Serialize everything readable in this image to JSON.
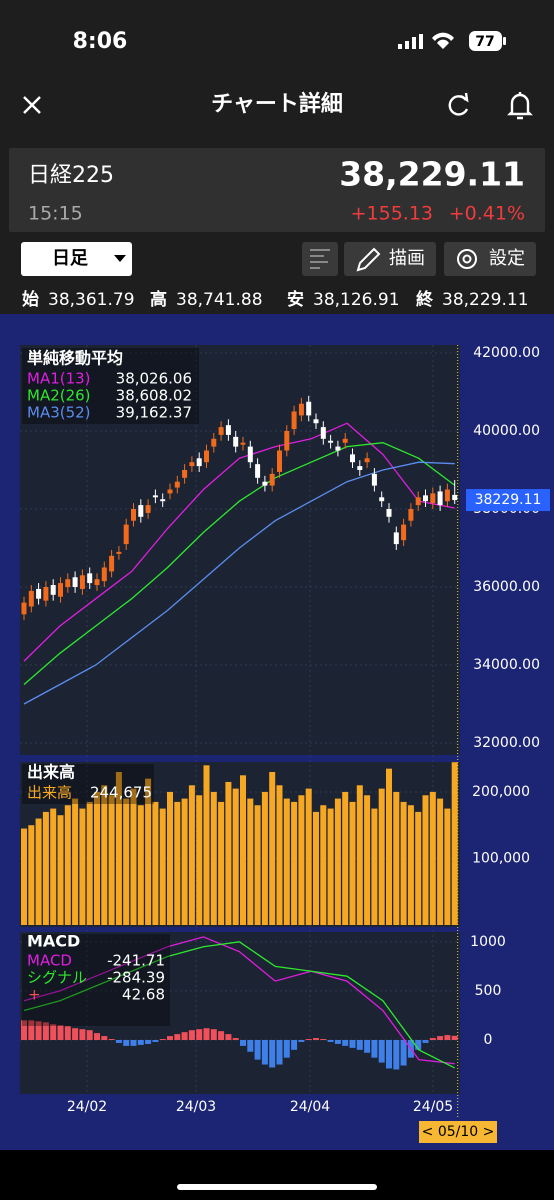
{
  "status": {
    "time": "8:06",
    "battery": "77"
  },
  "nav": {
    "title": "チャート詳細"
  },
  "quote": {
    "name": "日経225",
    "price": "38,229.11",
    "time": "15:15",
    "change": "+155.13",
    "percent": "+0.41%"
  },
  "toolbar": {
    "period": "日足",
    "draw": "描画",
    "settings": "設定"
  },
  "ohlc": [
    {
      "label": "始",
      "value": "38,361.79"
    },
    {
      "label": "高",
      "value": "38,741.88"
    },
    {
      "label": "安",
      "value": "38,126.91"
    },
    {
      "label": "終",
      "value": "38,229.11"
    }
  ],
  "chart": {
    "type": "candlestick",
    "title": "単純移動平均",
    "ylim": [
      32000,
      42000
    ],
    "yticks": [
      {
        "value": 42000,
        "label": "42000.00"
      },
      {
        "value": 40000,
        "label": "40000.00"
      },
      {
        "value": 38000,
        "label": "38000.00"
      },
      {
        "value": 36000,
        "label": "36000.00"
      },
      {
        "value": 34000,
        "label": "34000.00"
      },
      {
        "value": 32000,
        "label": "32000.00"
      }
    ],
    "months": [
      "24/02",
      "24/03",
      "24/04",
      "24/05"
    ],
    "price_tag": "38229.11",
    "cursor": "< 05/10 >",
    "up_color": "#f26b1d",
    "down_color": "#ffffff",
    "candles": [
      [
        35300,
        35750,
        35150,
        35600
      ],
      [
        35500,
        36050,
        35350,
        35900
      ],
      [
        35950,
        36100,
        35550,
        35700
      ],
      [
        35650,
        36150,
        35500,
        36000
      ],
      [
        36050,
        36200,
        35650,
        35800
      ],
      [
        35750,
        36250,
        35600,
        36100
      ],
      [
        36000,
        36350,
        35850,
        36200
      ],
      [
        36250,
        36400,
        35850,
        36000
      ],
      [
        35950,
        36450,
        35800,
        36300
      ],
      [
        36350,
        36500,
        35950,
        36100
      ],
      [
        36050,
        36350,
        35900,
        36200
      ],
      [
        36150,
        36650,
        36000,
        36500
      ],
      [
        36400,
        36950,
        36250,
        36800
      ],
      [
        36850,
        37050,
        36700,
        36900
      ],
      [
        37100,
        37750,
        36950,
        37600
      ],
      [
        37700,
        38150,
        37550,
        38000
      ],
      [
        38100,
        38250,
        37650,
        37800
      ],
      [
        37900,
        38250,
        37750,
        38100
      ],
      [
        38350,
        38500,
        38150,
        38300
      ],
      [
        38250,
        38400,
        38050,
        38200
      ],
      [
        38400,
        38650,
        38250,
        38500
      ],
      [
        38550,
        38850,
        38400,
        38700
      ],
      [
        38800,
        39150,
        38650,
        39000
      ],
      [
        39100,
        39350,
        38950,
        39200
      ],
      [
        39300,
        39450,
        38950,
        39100
      ],
      [
        39200,
        39650,
        39050,
        39500
      ],
      [
        39600,
        39950,
        39450,
        39800
      ],
      [
        39900,
        40250,
        39750,
        40100
      ],
      [
        40150,
        40300,
        39750,
        39900
      ],
      [
        39850,
        40000,
        39450,
        39600
      ],
      [
        39650,
        39850,
        39500,
        39700
      ],
      [
        39600,
        39750,
        39050,
        39200
      ],
      [
        39150,
        39300,
        38650,
        38800
      ],
      [
        38700,
        38850,
        38450,
        38600
      ],
      [
        38600,
        39050,
        38450,
        38900
      ],
      [
        38950,
        39650,
        38800,
        39500
      ],
      [
        39500,
        40150,
        39350,
        40000
      ],
      [
        40050,
        40650,
        39900,
        40500
      ],
      [
        40400,
        40850,
        40250,
        40700
      ],
      [
        40750,
        40900,
        40250,
        40400
      ],
      [
        40300,
        40450,
        40050,
        40200
      ],
      [
        40100,
        40250,
        39650,
        39800
      ],
      [
        39750,
        39900,
        39550,
        39700
      ],
      [
        39600,
        39750,
        39350,
        39500
      ],
      [
        39700,
        39950,
        39550,
        39800
      ],
      [
        39400,
        39550,
        39050,
        39200
      ],
      [
        39100,
        39250,
        38850,
        39000
      ],
      [
        39200,
        39450,
        39050,
        39300
      ],
      [
        38900,
        39050,
        38450,
        38600
      ],
      [
        38300,
        38450,
        38050,
        38200
      ],
      [
        38000,
        38150,
        37650,
        37800
      ],
      [
        37400,
        37550,
        36950,
        37100
      ],
      [
        37200,
        37750,
        37050,
        37600
      ],
      [
        37700,
        38150,
        37550,
        38000
      ],
      [
        38100,
        38450,
        37950,
        38300
      ],
      [
        38350,
        38500,
        38050,
        38200
      ],
      [
        38150,
        38550,
        38000,
        38400
      ],
      [
        38450,
        38600,
        37950,
        38100
      ],
      [
        38200,
        38650,
        38050,
        38500
      ],
      [
        38361.79,
        38741.88,
        38126.91,
        38229.11
      ]
    ],
    "ma": [
      {
        "name": "MA1(13)",
        "color": "#e01ee0",
        "value_label": "38,026.06",
        "values": [
          34100,
          35000,
          35700,
          36400,
          37500,
          38500,
          39300,
          39600,
          39800,
          40200,
          39400,
          38200,
          38026.06
        ]
      },
      {
        "name": "MA2(26)",
        "color": "#2ee82e",
        "value_label": "38,608.02",
        "values": [
          33500,
          34300,
          35000,
          35700,
          36500,
          37400,
          38200,
          38800,
          39200,
          39600,
          39700,
          39300,
          38608.02
        ]
      },
      {
        "name": "MA3(52)",
        "color": "#5b8def",
        "value_label": "39,162.37",
        "values": [
          33000,
          33500,
          34000,
          34700,
          35400,
          36200,
          37000,
          37700,
          38200,
          38700,
          39000,
          39200,
          39162.37
        ]
      }
    ],
    "volume": {
      "title": "出来高",
      "name": "出来高",
      "value_label": "244,675",
      "color": "#f7a823",
      "ylim": [
        0,
        245000
      ],
      "yticks": [
        {
          "value": 200000,
          "label": "200,000"
        },
        {
          "value": 100000,
          "label": "100,000"
        }
      ],
      "values": [
        145000,
        150000,
        160000,
        170000,
        175000,
        165000,
        180000,
        190000,
        175000,
        185000,
        200000,
        210000,
        195000,
        230000,
        190000,
        205000,
        180000,
        220000,
        185000,
        175000,
        200000,
        185000,
        190000,
        210000,
        195000,
        240000,
        200000,
        185000,
        215000,
        205000,
        225000,
        190000,
        180000,
        200000,
        230000,
        210000,
        190000,
        185000,
        195000,
        205000,
        170000,
        180000,
        175000,
        190000,
        200000,
        185000,
        210000,
        195000,
        175000,
        205000,
        235000,
        200000,
        185000,
        180000,
        170000,
        195000,
        200000,
        190000,
        175000,
        244675
      ]
    },
    "macd": {
      "title": "MACD",
      "ylim": [
        -550,
        1100
      ],
      "yticks": [
        1000,
        500,
        0
      ],
      "lines": [
        {
          "name": "MACD",
          "color": "#e01ee0",
          "value_label": "-241.71",
          "values": [
            400,
            500,
            650,
            800,
            950,
            1050,
            900,
            600,
            700,
            600,
            300,
            -200,
            -241.71
          ]
        },
        {
          "name": "シグナル",
          "color": "#2ee82e",
          "value_label": "-284.39",
          "values": [
            300,
            400,
            550,
            700,
            850,
            950,
            1000,
            750,
            700,
            650,
            400,
            -100,
            -284.39
          ]
        }
      ],
      "hist_name": "+",
      "hist_label": "42.68",
      "pos_color": "#f0505a",
      "neg_color": "#3f7fe8",
      "histogram": [
        200,
        200,
        190,
        180,
        160,
        150,
        140,
        120,
        110,
        100,
        70,
        40,
        10,
        -30,
        -60,
        -60,
        -50,
        -40,
        -20,
        10,
        40,
        60,
        80,
        100,
        110,
        120,
        110,
        90,
        60,
        20,
        -60,
        -120,
        -200,
        -250,
        -280,
        -250,
        -180,
        -100,
        -20,
        10,
        20,
        10,
        -20,
        -40,
        -60,
        -80,
        -100,
        -130,
        -180,
        -230,
        -290,
        -300,
        -260,
        -180,
        -100,
        -30,
        20,
        40,
        50,
        42.68
      ]
    }
  }
}
